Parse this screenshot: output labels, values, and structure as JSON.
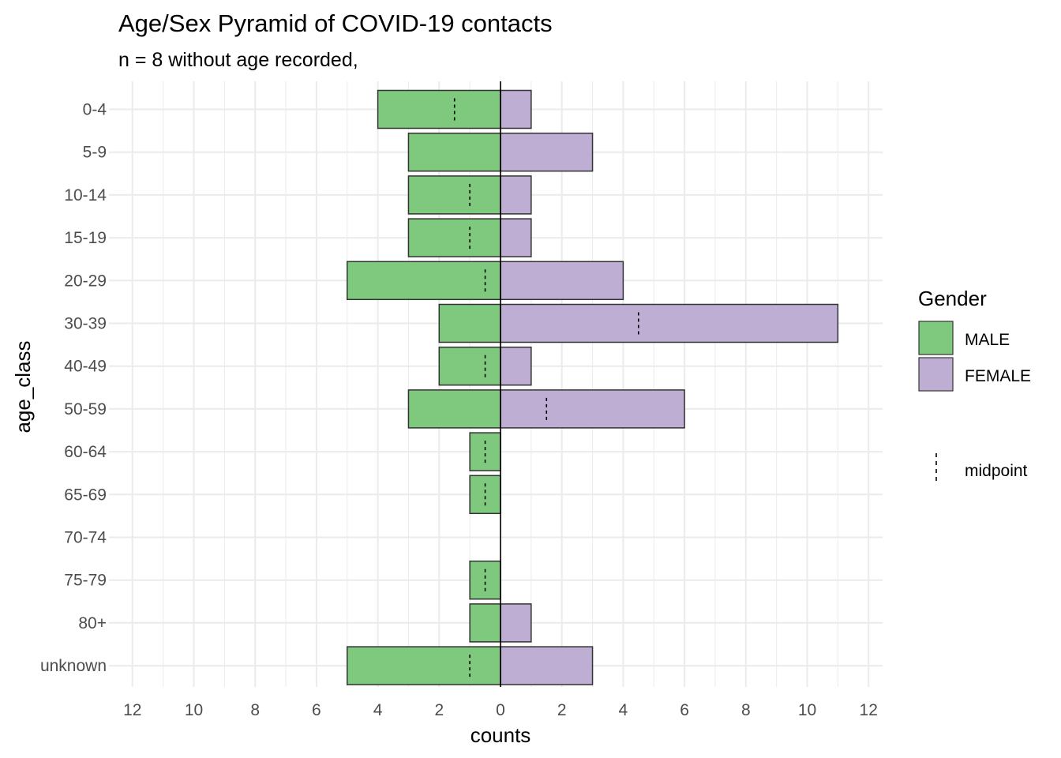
{
  "chart_data": {
    "type": "bar",
    "orientation": "horizontal",
    "title": "Age/Sex Pyramid of COVID-19 contacts",
    "subtitle": "n = 8 without age recorded,",
    "xlabel": "counts",
    "ylabel": "age_class",
    "xlim": [
      -12,
      12
    ],
    "x_ticks": [
      -12,
      -10,
      -8,
      -6,
      -4,
      -2,
      0,
      2,
      4,
      6,
      8,
      10,
      12
    ],
    "x_tick_labels": [
      "12",
      "10",
      "8",
      "6",
      "4",
      "2",
      "0",
      "2",
      "4",
      "6",
      "8",
      "10",
      "12"
    ],
    "categories": [
      "0-4",
      "5-9",
      "10-14",
      "15-19",
      "20-29",
      "30-39",
      "40-49",
      "50-59",
      "60-64",
      "65-69",
      "70-74",
      "75-79",
      "80+",
      "unknown"
    ],
    "series": [
      {
        "name": "MALE",
        "color": "#7fc97f",
        "values": [
          4,
          3,
          3,
          3,
          5,
          2,
          2,
          3,
          1,
          1,
          0,
          1,
          1,
          5
        ]
      },
      {
        "name": "FEMALE",
        "color": "#beaed4",
        "values": [
          1,
          3,
          1,
          1,
          4,
          11,
          1,
          6,
          0,
          0,
          0,
          0,
          1,
          3
        ]
      }
    ],
    "midpoint": [
      -1.5,
      null,
      -1,
      -1,
      -0.5,
      4.5,
      -0.5,
      1.5,
      -0.5,
      -0.5,
      null,
      -0.5,
      null,
      -1
    ],
    "legend": {
      "title": "Gender",
      "placement": "right",
      "items": [
        "MALE",
        "FEMALE"
      ],
      "line_label": "midpoint"
    },
    "grid": true
  }
}
